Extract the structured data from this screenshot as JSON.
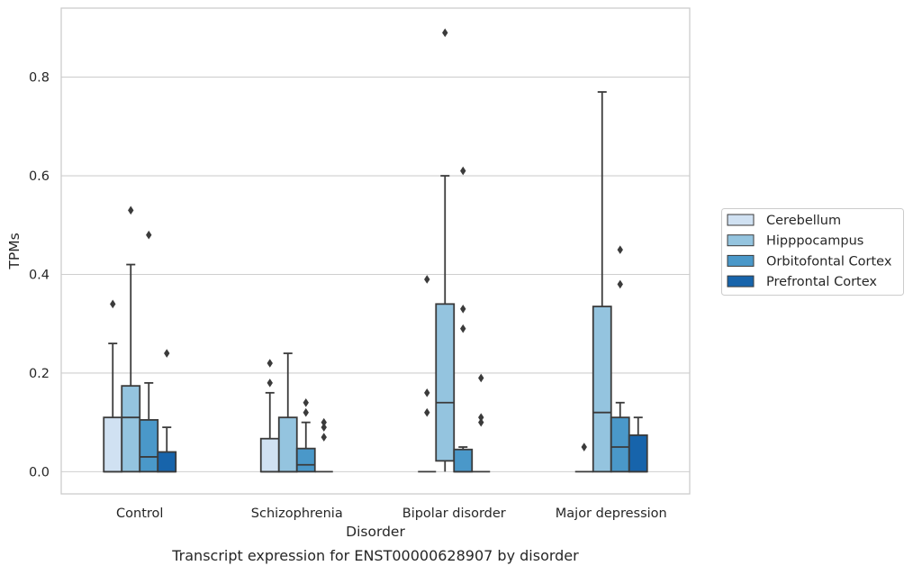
{
  "chart_data": {
    "type": "box",
    "title": "",
    "caption": "Transcript expression for ENST00000628907 by disorder",
    "xlabel": "Disorder",
    "ylabel": "TPMs",
    "ylim": [
      -0.045,
      0.94
    ],
    "yticks": [
      0.0,
      0.2,
      0.4,
      0.6,
      0.8
    ],
    "ytick_labels": [
      "0.0",
      "0.2",
      "0.4",
      "0.6",
      "0.8"
    ],
    "grid": "horizontal",
    "legend_position": "right",
    "categories": [
      "Control",
      "Schizophrenia",
      "Bipolar disorder",
      "Major depression"
    ],
    "series": [
      {
        "name": "Cerebellum",
        "color": "#d0e1f2",
        "boxes": [
          {
            "q1": 0.0,
            "median": 0.0,
            "q3": 0.11,
            "whisker_low": 0.0,
            "whisker_high": 0.26,
            "outliers": [
              0.34
            ]
          },
          {
            "q1": 0.0,
            "median": 0.0,
            "q3": 0.067,
            "whisker_low": 0.0,
            "whisker_high": 0.16,
            "outliers": [
              0.18,
              0.22
            ]
          },
          {
            "q1": 0.0,
            "median": 0.0,
            "q3": 0.0,
            "whisker_low": 0.0,
            "whisker_high": 0.0,
            "outliers": []
          },
          {
            "q1": 0.0,
            "median": 0.0,
            "q3": 0.0,
            "whisker_low": 0.0,
            "whisker_high": 0.0,
            "outliers": []
          }
        ]
      },
      {
        "name": "Hipppocampus",
        "color": "#94c4df",
        "boxes": [
          {
            "q1": 0.0,
            "median": 0.11,
            "q3": 0.174,
            "whisker_low": 0.0,
            "whisker_high": 0.42,
            "outliers": [
              0.53
            ]
          },
          {
            "q1": 0.0,
            "median": 0.0,
            "q3": 0.11,
            "whisker_low": 0.0,
            "whisker_high": 0.24,
            "outliers": []
          },
          {
            "q1": 0.022,
            "median": 0.14,
            "q3": 0.34,
            "whisker_low": 0.0,
            "whisker_high": 0.6,
            "outliers": [
              0.89
            ]
          },
          {
            "q1": 0.0,
            "median": 0.12,
            "q3": 0.335,
            "whisker_low": 0.0,
            "whisker_high": 0.77,
            "outliers": []
          }
        ]
      },
      {
        "name": "Orbitofontal Cortex",
        "color": "#4a98c9",
        "boxes": [
          {
            "q1": 0.0,
            "median": 0.03,
            "q3": 0.105,
            "whisker_low": 0.0,
            "whisker_high": 0.18,
            "outliers": [
              0.48
            ]
          },
          {
            "q1": 0.0,
            "median": 0.014,
            "q3": 0.047,
            "whisker_low": 0.0,
            "whisker_high": 0.1,
            "outliers": [
              0.12,
              0.14
            ]
          },
          {
            "q1": 0.0,
            "median": 0.0,
            "q3": 0.045,
            "whisker_low": 0.0,
            "whisker_high": 0.05,
            "outliers": [
              0.29,
              0.33,
              0.61
            ]
          },
          {
            "q1": 0.0,
            "median": 0.05,
            "q3": 0.11,
            "whisker_low": 0.0,
            "whisker_high": 0.14,
            "outliers": [
              0.38,
              0.45
            ]
          }
        ]
      },
      {
        "name": "Prefrontal Cortex",
        "color": "#1764ab",
        "boxes": [
          {
            "q1": 0.0,
            "median": 0.0,
            "q3": 0.04,
            "whisker_low": 0.0,
            "whisker_high": 0.09,
            "outliers": [
              0.24
            ]
          },
          {
            "q1": 0.0,
            "median": 0.0,
            "q3": 0.0,
            "whisker_low": 0.0,
            "whisker_high": 0.0,
            "outliers": [
              0.07,
              0.09,
              0.1
            ]
          },
          {
            "q1": 0.0,
            "median": 0.0,
            "q3": 0.0,
            "whisker_low": 0.0,
            "whisker_high": 0.0,
            "outliers": [
              0.1,
              0.11,
              0.19
            ]
          },
          {
            "q1": 0.0,
            "median": 0.0,
            "q3": 0.074,
            "whisker_low": 0.0,
            "whisker_high": 0.11,
            "outliers": []
          }
        ]
      }
    ],
    "extra_outliers": [
      {
        "category": "Bipolar disorder",
        "series": "Cerebellum",
        "values": [
          0.12,
          0.16,
          0.39
        ]
      },
      {
        "category": "Major depression",
        "series": "Cerebellum",
        "values": [
          0.05
        ]
      }
    ]
  }
}
